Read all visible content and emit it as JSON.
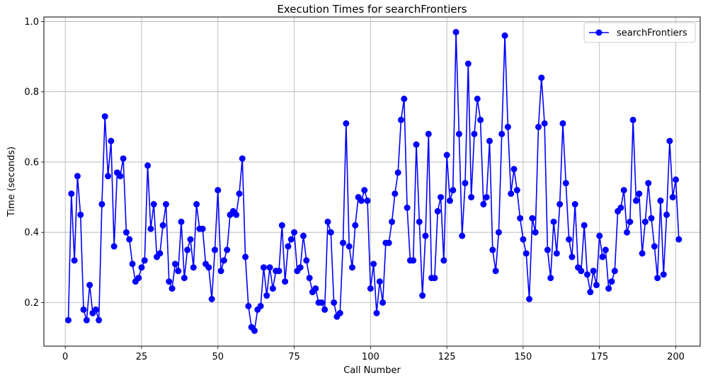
{
  "chart_data": {
    "type": "line",
    "title": "Execution Times for searchFrontiers",
    "xlabel": "Call Number",
    "ylabel": "Time (seconds)",
    "xlim": [
      -7.0,
      208.0
    ],
    "ylim": [
      0.076,
      1.013
    ],
    "xticks": [
      0,
      25,
      50,
      75,
      100,
      125,
      150,
      175,
      200
    ],
    "yticks": [
      0.2,
      0.4,
      0.6,
      0.8,
      1.0
    ],
    "ytick_labels": [
      "0.2",
      "0.4",
      "0.6",
      "0.8",
      "1.0"
    ],
    "grid": true,
    "legend_position": "top-right",
    "series": [
      {
        "name": "searchFrontiers",
        "color": "#0000ff",
        "marker": "circle",
        "x": [
          1,
          2,
          3,
          4,
          5,
          6,
          7,
          8,
          9,
          10,
          11,
          12,
          13,
          14,
          15,
          16,
          17,
          18,
          19,
          20,
          21,
          22,
          23,
          24,
          25,
          26,
          27,
          28,
          29,
          30,
          31,
          32,
          33,
          34,
          35,
          36,
          37,
          38,
          39,
          40,
          41,
          42,
          43,
          44,
          45,
          46,
          47,
          48,
          49,
          50,
          51,
          52,
          53,
          54,
          55,
          56,
          57,
          58,
          59,
          60,
          61,
          62,
          63,
          64,
          65,
          66,
          67,
          68,
          69,
          70,
          71,
          72,
          73,
          74,
          75,
          76,
          77,
          78,
          79,
          80,
          81,
          82,
          83,
          84,
          85,
          86,
          87,
          88,
          89,
          90,
          91,
          92,
          93,
          94,
          95,
          96,
          97,
          98,
          99,
          100,
          101,
          102,
          103,
          104,
          105,
          106,
          107,
          108,
          109,
          110,
          111,
          112,
          113,
          114,
          115,
          116,
          117,
          118,
          119,
          120,
          121,
          122,
          123,
          124,
          125,
          126,
          127,
          128,
          129,
          130,
          131,
          132,
          133,
          134,
          135,
          136,
          137,
          138,
          139,
          140,
          141,
          142,
          143,
          144,
          145,
          146,
          147,
          148,
          149,
          150,
          151,
          152,
          153,
          154,
          155,
          156,
          157,
          158,
          159,
          160,
          161,
          162,
          163,
          164,
          165,
          166,
          167,
          168,
          169,
          170,
          171,
          172,
          173,
          174,
          175,
          176,
          177,
          178,
          179,
          180,
          181,
          182,
          183,
          184,
          185,
          186,
          187,
          188,
          189,
          190,
          191,
          192,
          193,
          194,
          195,
          196,
          197,
          198,
          199,
          200,
          201
        ],
        "values": [
          0.15,
          0.51,
          0.32,
          0.56,
          0.45,
          0.18,
          0.15,
          0.25,
          0.17,
          0.18,
          0.15,
          0.48,
          0.73,
          0.56,
          0.66,
          0.36,
          0.57,
          0.56,
          0.61,
          0.4,
          0.38,
          0.31,
          0.26,
          0.27,
          0.3,
          0.32,
          0.59,
          0.41,
          0.48,
          0.33,
          0.34,
          0.42,
          0.48,
          0.26,
          0.24,
          0.31,
          0.29,
          0.43,
          0.27,
          0.35,
          0.38,
          0.3,
          0.48,
          0.41,
          0.41,
          0.31,
          0.3,
          0.21,
          0.35,
          0.52,
          0.29,
          0.32,
          0.35,
          0.45,
          0.46,
          0.45,
          0.51,
          0.61,
          0.33,
          0.19,
          0.13,
          0.12,
          0.18,
          0.19,
          0.3,
          0.22,
          0.3,
          0.24,
          0.29,
          0.29,
          0.42,
          0.26,
          0.36,
          0.38,
          0.4,
          0.29,
          0.3,
          0.39,
          0.32,
          0.27,
          0.23,
          0.24,
          0.2,
          0.2,
          0.18,
          0.43,
          0.4,
          0.2,
          0.16,
          0.17,
          0.37,
          0.71,
          0.36,
          0.3,
          0.42,
          0.5,
          0.49,
          0.52,
          0.49,
          0.24,
          0.31,
          0.17,
          0.26,
          0.2,
          0.37,
          0.37,
          0.43,
          0.51,
          0.57,
          0.72,
          0.78,
          0.47,
          0.32,
          0.32,
          0.65,
          0.43,
          0.22,
          0.39,
          0.68,
          0.27,
          0.27,
          0.46,
          0.5,
          0.32,
          0.62,
          0.49,
          0.52,
          0.97,
          0.68,
          0.39,
          0.54,
          0.88,
          0.5,
          0.68,
          0.78,
          0.72,
          0.48,
          0.5,
          0.66,
          0.35,
          0.29,
          0.4,
          0.68,
          0.96,
          0.7,
          0.51,
          0.58,
          0.52,
          0.44,
          0.38,
          0.34,
          0.21,
          0.44,
          0.4,
          0.7,
          0.84,
          0.71,
          0.35,
          0.27,
          0.43,
          0.34,
          0.48,
          0.71,
          0.54,
          0.38,
          0.33,
          0.48,
          0.3,
          0.29,
          0.42,
          0.28,
          0.23,
          0.29,
          0.25,
          0.39,
          0.33,
          0.35,
          0.24,
          0.26,
          0.29,
          0.46,
          0.47,
          0.52,
          0.4,
          0.43,
          0.72,
          0.49,
          0.51,
          0.34,
          0.43,
          0.54,
          0.44,
          0.36,
          0.27,
          0.49,
          0.28,
          0.45,
          0.66,
          0.5,
          0.55,
          0.38
        ]
      }
    ]
  }
}
